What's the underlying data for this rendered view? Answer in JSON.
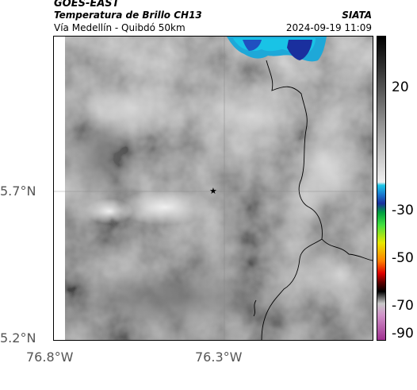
{
  "header": {
    "satellite": "GOES-EAST",
    "product": "Temperatura de Brillo CH13",
    "region": "Vía Medellín - Quibdó 50km",
    "organization": "SIATA",
    "datetime": "2024-09-19 11:09"
  },
  "axes": {
    "lat_ticks": [
      "5.7°N",
      "5.2°N"
    ],
    "lon_ticks": [
      "76.8°W",
      "76.3°W"
    ]
  },
  "colorbar": {
    "tick_labels": [
      "20",
      "-30",
      "-50",
      "-70",
      "-90"
    ]
  },
  "map": {
    "marker": "star-icon"
  },
  "colors": {
    "cold_cloud_cyan": "#1ea8d8",
    "cold_cloud_blue": "#1a2f9e"
  }
}
